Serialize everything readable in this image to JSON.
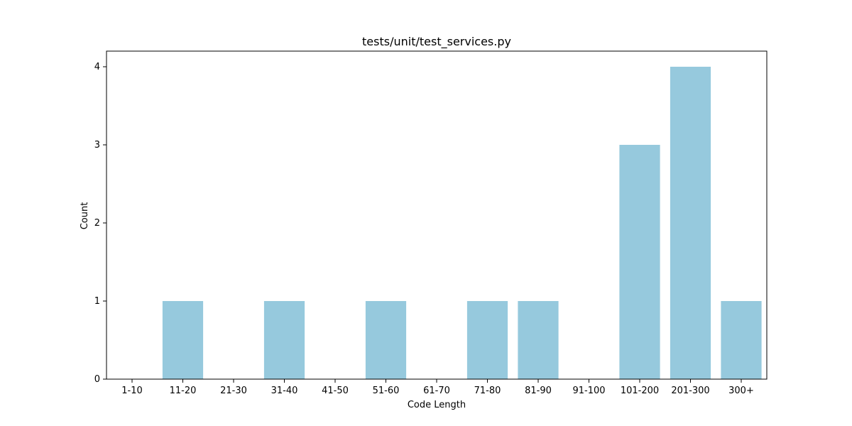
{
  "chart_data": {
    "type": "bar",
    "title": "tests/unit/test_services.py",
    "xlabel": "Code Length",
    "ylabel": "Count",
    "categories": [
      "1-10",
      "11-20",
      "21-30",
      "31-40",
      "41-50",
      "51-60",
      "61-70",
      "71-80",
      "81-90",
      "91-100",
      "101-200",
      "201-300",
      "300+"
    ],
    "values": [
      0,
      1,
      0,
      1,
      0,
      1,
      0,
      1,
      1,
      0,
      3,
      4,
      1
    ],
    "ylim": [
      0,
      4.2
    ],
    "yticks": [
      0,
      1,
      2,
      3,
      4
    ],
    "grid": false,
    "bar_color": "#96c9dd"
  }
}
